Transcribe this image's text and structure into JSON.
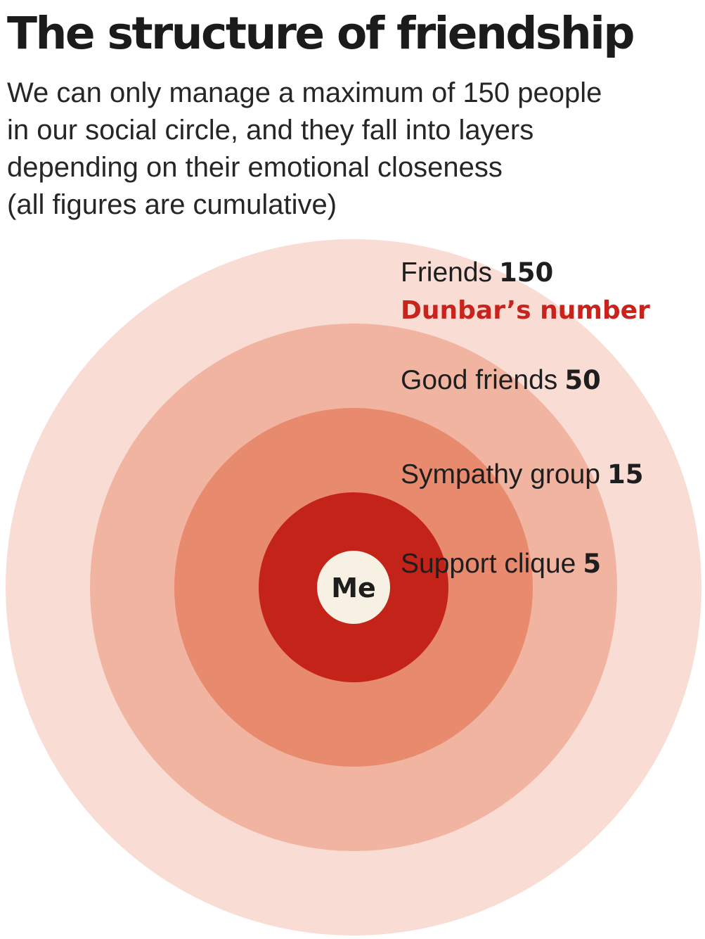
{
  "title": "The structure of friendship",
  "subtitle_lines": [
    "We can only manage a maximum of 150 people",
    "in our social circle, and they fall into layers",
    "depending on their emotional closeness",
    "(all figures are cumulative)"
  ],
  "center_label": "Me",
  "layers": [
    {
      "label": "Friends",
      "value": "150",
      "note": "Dunbar’s number",
      "color": "#f9ddd4"
    },
    {
      "label": "Good friends",
      "value": "50",
      "color": "#f1b4a0"
    },
    {
      "label": "Sympathy group",
      "value": "15",
      "color": "#e88a6e"
    },
    {
      "label": "Support clique",
      "value": "5",
      "color": "#c4231a"
    }
  ],
  "center_color": "#f6f1e3",
  "accent_color": "#c8231c"
}
